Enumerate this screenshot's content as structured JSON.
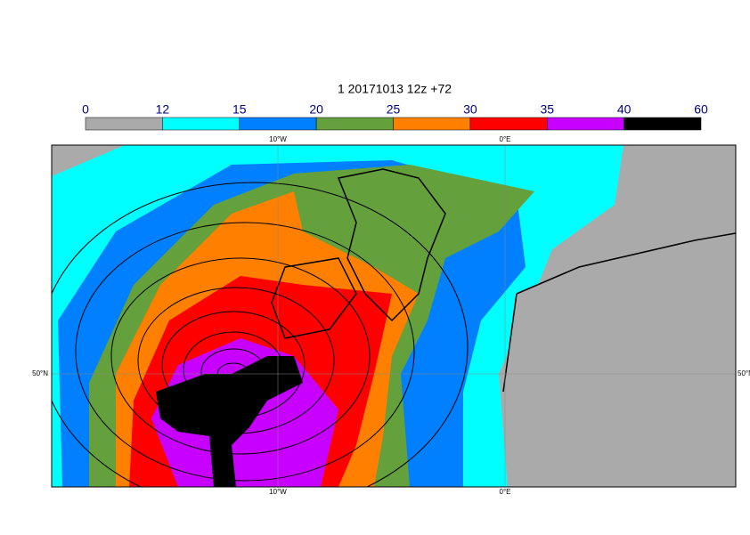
{
  "title": "1 20171013 12z +72",
  "colorbar": {
    "bounds": [
      0,
      12,
      15,
      20,
      25,
      30,
      35,
      40,
      60
    ],
    "colors": [
      "#aaaaaa",
      "#00ffff",
      "#0080ff",
      "#64a03c",
      "#ff8000",
      "#ff0000",
      "#c800ff",
      "#000000"
    ]
  },
  "lon_labels": [
    "10°W",
    "0°E"
  ],
  "lat_label": "50°N"
}
